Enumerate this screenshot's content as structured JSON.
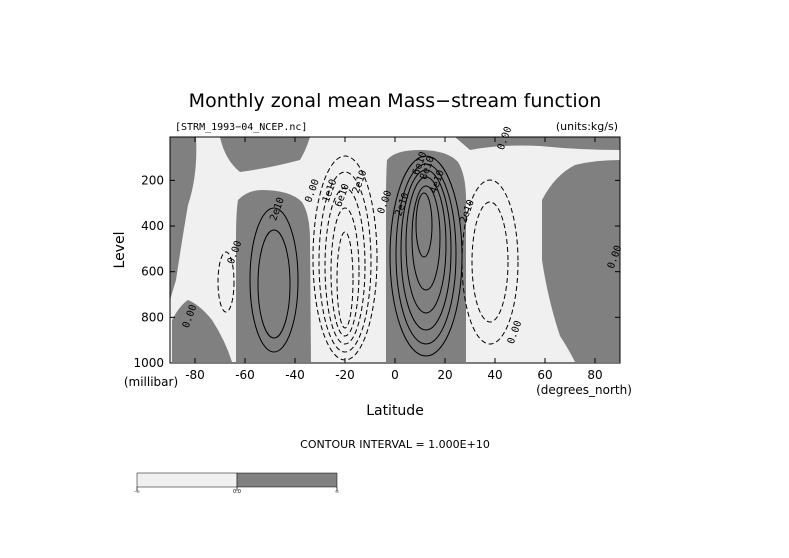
{
  "chart_data": {
    "type": "contour",
    "title": "Monthly zonal mean Mass−stream function",
    "source_label": "[STRM_1993−04_NCEP.nc]",
    "units_label": "(units:kg/s)",
    "xlabel": "Latitude",
    "xunits": "(degrees_north)",
    "ylabel": "Level",
    "yunits": "(millibar)",
    "xlim": [
      -90,
      90
    ],
    "ylim": [
      1000,
      10
    ],
    "xticks": [
      -80,
      -60,
      -40,
      -20,
      0,
      20,
      40,
      60,
      80
    ],
    "yticks": [
      200,
      400,
      600,
      800,
      1000
    ],
    "contour_interval_label": "CONTOUR INTERVAL = 1.000E+10",
    "contour_interval": 10000000000,
    "shading": {
      "positive": "#808080",
      "negative": "#f0f0f0",
      "threshold": 0
    },
    "contour_labels": [
      {
        "text": "2e10",
        "lat": -46,
        "p": 330
      },
      {
        "text": "0.00",
        "lat": -32,
        "p": 250
      },
      {
        "text": "0.00",
        "lat": -63,
        "p": 520
      },
      {
        "text": "0.00",
        "lat": -81,
        "p": 800
      },
      {
        "text": "1e10",
        "lat": -25,
        "p": 250
      },
      {
        "text": "6e10",
        "lat": -20,
        "p": 270
      },
      {
        "text": "2e10",
        "lat": -13,
        "p": 210
      },
      {
        "text": "0.00",
        "lat": -3,
        "p": 300
      },
      {
        "text": "2e10",
        "lat": 4,
        "p": 310
      },
      {
        "text": "8e10",
        "lat": 14,
        "p": 150
      },
      {
        "text": "4e10",
        "lat": 18,
        "p": 210
      },
      {
        "text": "6e10",
        "lat": 11,
        "p": 130
      },
      {
        "text": "2e10",
        "lat": 30,
        "p": 340
      },
      {
        "text": "0.00",
        "lat": 45,
        "p": 20
      },
      {
        "text": "0.00",
        "lat": 49,
        "p": 870
      },
      {
        "text": "0.00",
        "lat": 89,
        "p": 540
      }
    ],
    "colorbar": {
      "ticks": [
        "-∞",
        "0.0",
        "∞"
      ]
    }
  },
  "colors": {
    "positive_fill": "#808080",
    "negative_fill": "#f0f0f0",
    "line": "#000000"
  }
}
